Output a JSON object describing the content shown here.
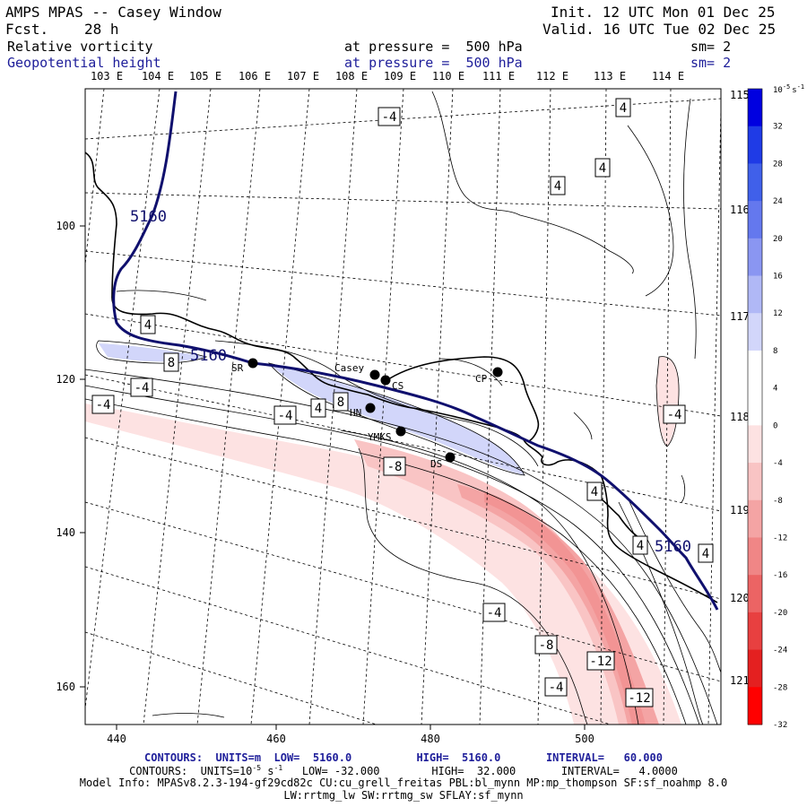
{
  "header": {
    "title": "AMPS MPAS -- Casey Window",
    "fcst_label": "Fcst.",
    "fcst_value": "28 h",
    "init": "Init. 12 UTC Mon 01 Dec 25",
    "valid": "Valid. 16 UTC Tue 02 Dec 25",
    "field1_name": "Relative vorticity",
    "field1_level": "at pressure =  500 hPa",
    "field1_sm": "sm= 2",
    "field2_name": "Geopotential height",
    "field2_level": "at pressure =  500 hPa",
    "field2_sm": "sm= 2"
  },
  "footer": {
    "line1": "CONTOURS:  UNITS=m  LOW=  5160.0          HIGH=  5160.0       INTERVAL=   60.000",
    "line2_pre": "CONTOURS:  UNITS=10",
    "line2_exp1": "-5",
    "line2_mid": " s",
    "line2_exp2": "-1",
    "line2_post": "   LOW= -32.000        HIGH=  32.000       INTERVAL=   4.0000",
    "line3": "Model Info: MPASv8.2.3-194-gf29cd82c CU:cu_grell_freitas PBL:bl_mynn MP:mp_thompson SF:sf_noahmp 8.0",
    "line4": "LW:rrtmg_lw SW:rrtmg_sw SFLAY:sf_mynn"
  },
  "colors": {
    "height_contour": "#10106e",
    "footer_blue": "#1e1e9a"
  },
  "chart_data": {
    "type": "contour",
    "x_axis": {
      "range": [
        435,
        517
      ],
      "ticks": [
        "440",
        "460",
        "480",
        "500"
      ],
      "tick_values": [
        440,
        460,
        480,
        500
      ]
    },
    "y_axis": {
      "range": [
        83,
        165
      ],
      "ticks": [
        "100",
        "120",
        "140",
        "160"
      ],
      "tick_values": [
        100,
        120,
        140,
        160
      ]
    },
    "longitude_labels_top": [
      "103 E",
      "104 E",
      "105 E",
      "106 E",
      "107 E",
      "108 E",
      "109 E",
      "110 E",
      "111 E",
      "112 E",
      "113 E",
      "114 E"
    ],
    "longitude_labels_right": [
      "115 E",
      "116 E",
      "117 E",
      "118 E",
      "119 E",
      "120 E",
      "121 E"
    ],
    "colorbar": {
      "unit_base": "10",
      "unit_exp": "-5",
      "unit_suffix": "s",
      "unit_suffix_exp": "-1",
      "labels": [
        "32",
        "28",
        "24",
        "20",
        "16",
        "12",
        "8",
        "4",
        "0",
        "-4",
        "-8",
        "-12",
        "-16",
        "-20",
        "-24",
        "-28",
        "-32"
      ],
      "colors": [
        "#0000e0",
        "#1f3be6",
        "#4060ea",
        "#6478ee",
        "#8a96f2",
        "#b0b8f6",
        "#d2d6fa",
        "#ffffff",
        "#ffffff",
        "#fde2e2",
        "#f9c4c4",
        "#f4a4a4",
        "#f08686",
        "#ec6464",
        "#e84040",
        "#e42020",
        "#ff0000"
      ]
    },
    "height_contour_value": "5160",
    "height_contour_labels": [
      "5160",
      "5160",
      "5160"
    ],
    "vorticity_labels": [
      "-4",
      "4",
      "4",
      "4",
      "4",
      "8",
      "-4",
      "-4",
      "-4",
      "4",
      "8",
      "-8",
      "-4",
      "-8",
      "-4",
      "-12",
      "-12",
      "-4",
      "4",
      "4",
      "4"
    ],
    "stations": [
      "SR",
      "Casey",
      "CS",
      "HN",
      "YMKS",
      "DS",
      "CP"
    ]
  }
}
